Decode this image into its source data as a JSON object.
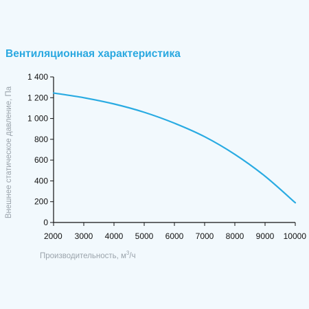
{
  "chart_data": {
    "type": "line",
    "title": "Вентиляционная характеристика",
    "xlabel": "Производительность, м³/ч",
    "xlabel_parts": {
      "main": "Производительность, м",
      "sup": "3",
      "tail": "/ч"
    },
    "ylabel": "Внешнее статическое давление, Па",
    "xlim": [
      2000,
      10000
    ],
    "ylim": [
      0,
      1400
    ],
    "x_ticks": [
      2000,
      3000,
      4000,
      5000,
      6000,
      7000,
      8000,
      9000,
      10000
    ],
    "y_ticks": [
      0,
      200,
      400,
      600,
      800,
      1000,
      1200,
      1400
    ],
    "x_tick_labels": [
      "2000",
      "3000",
      "4000",
      "5000",
      "6000",
      "7000",
      "8000",
      "9000",
      "10000"
    ],
    "y_tick_labels": [
      "0",
      "200",
      "400",
      "600",
      "800",
      "1 000",
      "1 200",
      "1 400"
    ],
    "grid": false,
    "series": [
      {
        "color": "#29abe2",
        "x": [
          2000,
          3000,
          4000,
          5000,
          6000,
          7000,
          8000,
          9000,
          10000
        ],
        "y": [
          1245,
          1200,
          1140,
          1060,
          955,
          825,
          655,
          445,
          190
        ]
      }
    ]
  }
}
